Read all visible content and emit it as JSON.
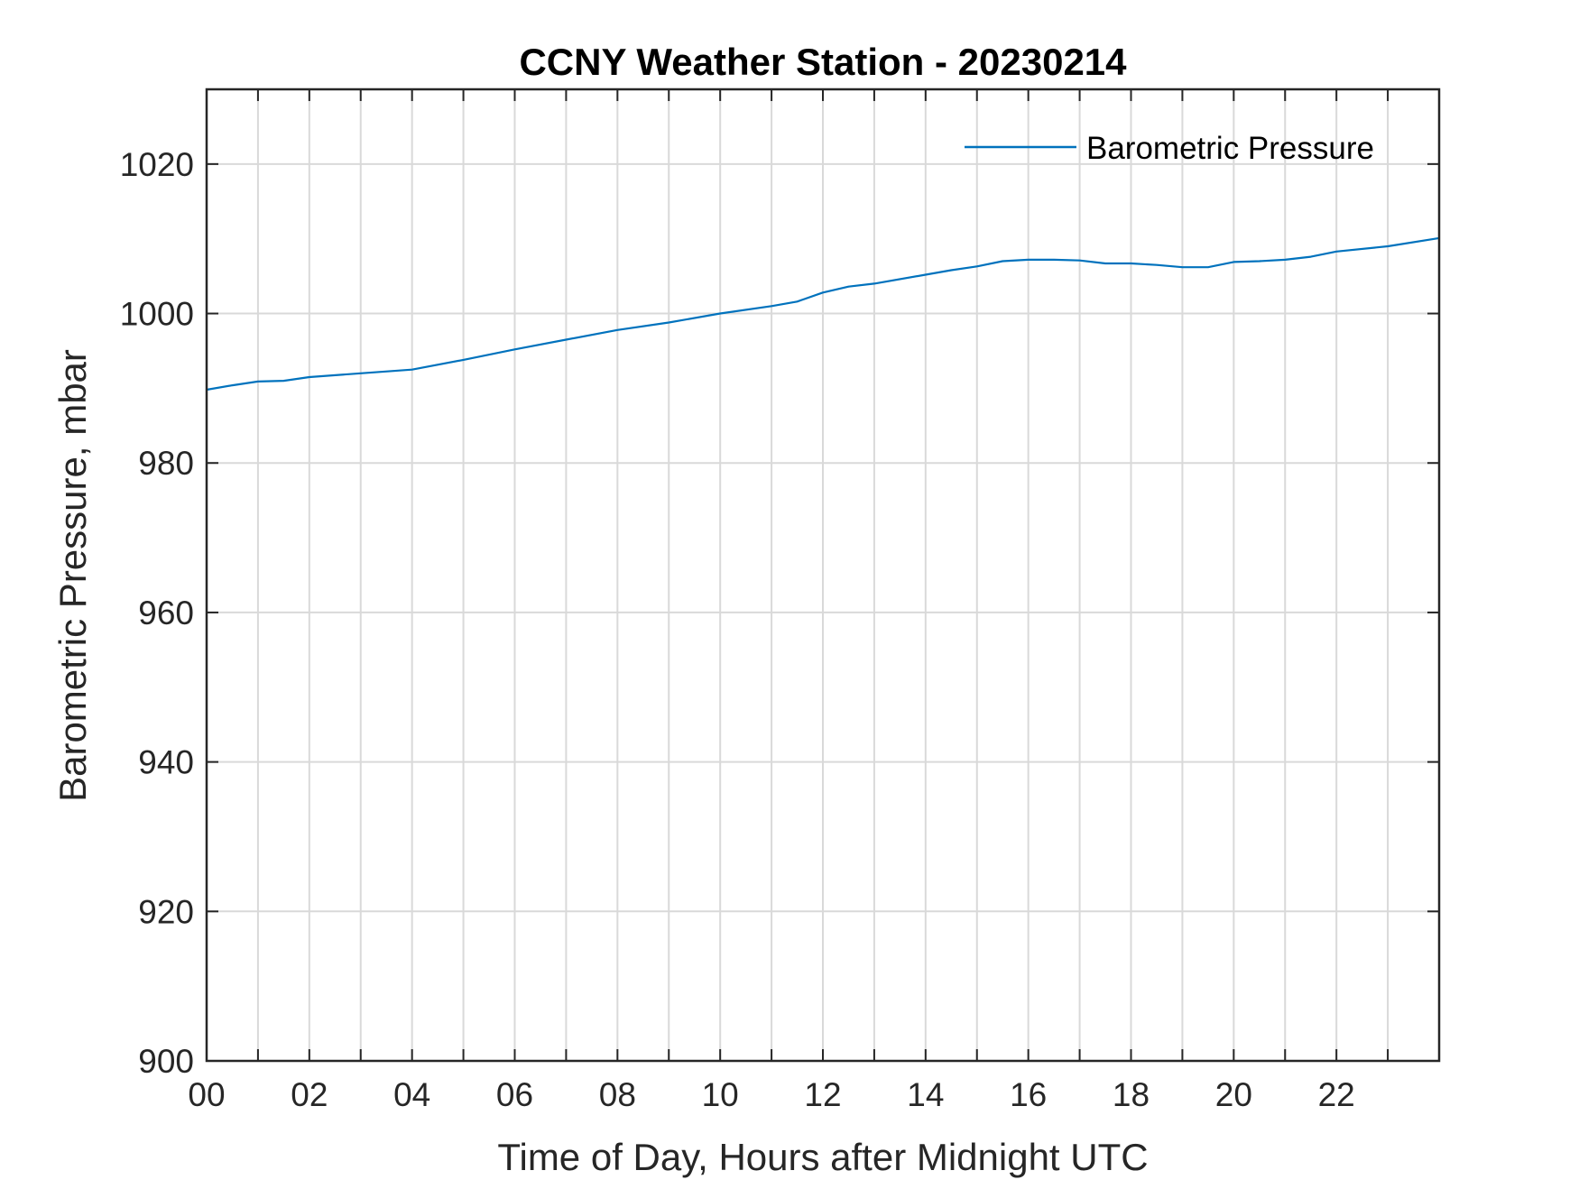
{
  "chart_data": {
    "type": "line",
    "title": "CCNY Weather Station - 20230214",
    "xlabel": "Time of Day, Hours after Midnight UTC",
    "ylabel": "Barometric Pressure, mbar",
    "xlim": [
      0,
      24
    ],
    "ylim": [
      900,
      1030
    ],
    "x_ticks": [
      0,
      2,
      4,
      6,
      8,
      10,
      12,
      14,
      16,
      18,
      20,
      22
    ],
    "x_tick_labels": [
      "00",
      "02",
      "04",
      "06",
      "08",
      "10",
      "12",
      "14",
      "16",
      "18",
      "20",
      "22"
    ],
    "x_grid": [
      0,
      1,
      2,
      3,
      4,
      5,
      6,
      7,
      8,
      9,
      10,
      11,
      12,
      13,
      14,
      15,
      16,
      17,
      18,
      19,
      20,
      21,
      22,
      23
    ],
    "y_ticks": [
      900,
      920,
      940,
      960,
      980,
      1000,
      1020
    ],
    "y_tick_labels": [
      "900",
      "920",
      "940",
      "960",
      "980",
      "1000",
      "1020"
    ],
    "grid": true,
    "legend": {
      "position": "top-right",
      "entries": [
        "Barometric Pressure"
      ]
    },
    "series": [
      {
        "name": "Barometric Pressure",
        "color": "#0072BD",
        "x": [
          0,
          0.5,
          1,
          1.5,
          2,
          3,
          4,
          5,
          6,
          7,
          8,
          9,
          10,
          11,
          11.5,
          12,
          12.5,
          13,
          14,
          14.5,
          15,
          15.5,
          16,
          16.5,
          17,
          17.5,
          18,
          18.5,
          19,
          19.5,
          20,
          20.5,
          21,
          21.5,
          22,
          23,
          24
        ],
        "values": [
          989.8,
          990.4,
          990.9,
          991.0,
          991.5,
          992.0,
          992.5,
          993.8,
          995.2,
          996.5,
          997.8,
          998.8,
          1000.0,
          1001.0,
          1001.6,
          1002.8,
          1003.6,
          1004.0,
          1005.2,
          1005.8,
          1006.3,
          1007.0,
          1007.2,
          1007.2,
          1007.1,
          1006.7,
          1006.7,
          1006.5,
          1006.2,
          1006.2,
          1006.9,
          1007.0,
          1007.2,
          1007.6,
          1008.3,
          1009.0,
          1010.1
        ]
      }
    ]
  }
}
